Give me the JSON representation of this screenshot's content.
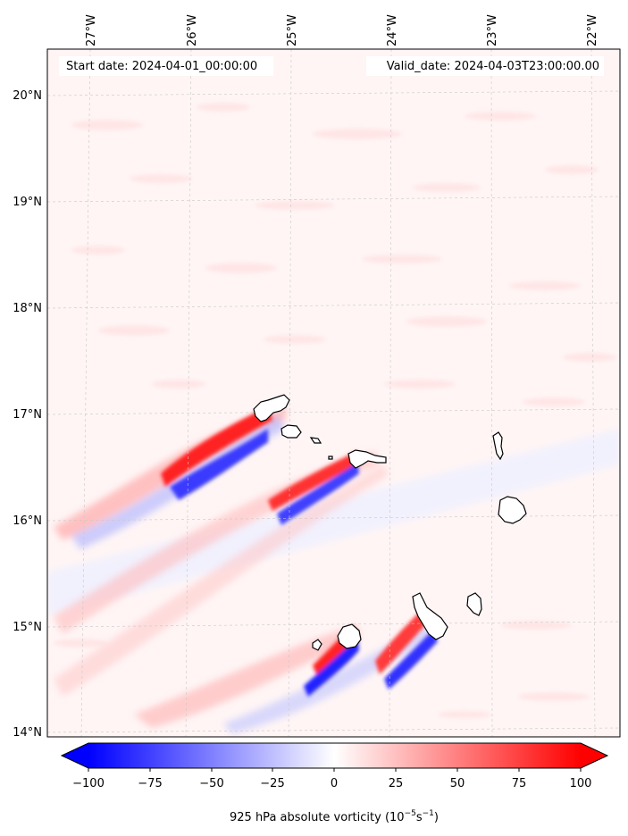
{
  "map": {
    "start_label": "Start date: 2024-04-01_00:00:00",
    "valid_label": "Valid_date: 2024-04-03T23:00:00.00",
    "lon_ticks": [
      "27°W",
      "26°W",
      "25°W",
      "24°W",
      "23°W",
      "22°W"
    ],
    "lat_ticks": [
      "20°N",
      "19°N",
      "18°N",
      "17°N",
      "16°N",
      "15°N",
      "14°N"
    ],
    "features": [
      "santo-antao",
      "sao-vicente",
      "santa-luzia",
      "sao-nicolau",
      "sal",
      "boa-vista",
      "brava",
      "fogo",
      "santiago",
      "maio"
    ],
    "colors": {
      "negative": "#0000ff",
      "positive": "#ff0000",
      "neutral": "#ffffff",
      "background": "#fff4f4"
    }
  },
  "colorbar": {
    "ticks": [
      "−100",
      "−75",
      "−50",
      "−25",
      "0",
      "25",
      "50",
      "75",
      "100"
    ],
    "label": "925 hPa absolute vorticity (10",
    "label_exp1": "−5",
    "label_mid": "s",
    "label_exp2": "−1",
    "label_end": ")",
    "range": [
      -100,
      100
    ],
    "colormap": "bwr"
  }
}
